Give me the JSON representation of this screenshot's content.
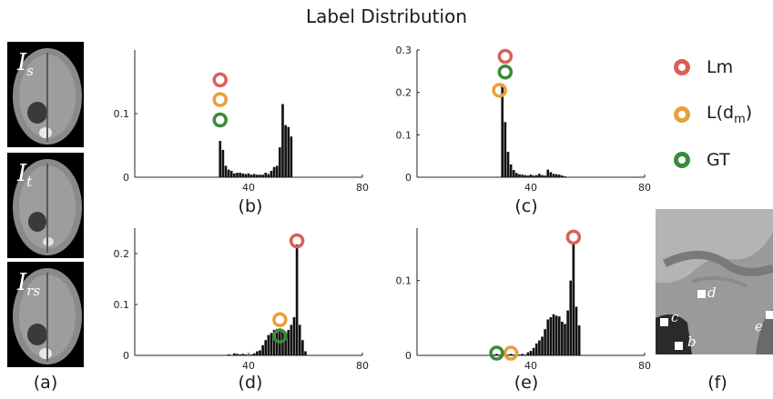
{
  "title": "Label Distribution",
  "captions": {
    "a": "(a)",
    "b": "(b)",
    "c": "(c)",
    "d": "(d)",
    "e": "(e)",
    "f": "(f)"
  },
  "brains": [
    {
      "label": "I",
      "sub": "s"
    },
    {
      "label": "I",
      "sub": "t"
    },
    {
      "label": "I",
      "sub": "rs"
    }
  ],
  "legend": [
    {
      "label": "Lm",
      "color": "#d9605a"
    },
    {
      "label": "L(d",
      "sub": "m",
      "suffix": ")",
      "color": "#e8a03a"
    },
    {
      "label": "GT",
      "color": "#3b8a3a"
    }
  ],
  "panel_f_labels": {
    "b": "b",
    "c": "c",
    "d": "d",
    "e": "e"
  },
  "chart_data": [
    {
      "panel": "(b)",
      "type": "bar",
      "xlim": [
        0,
        80
      ],
      "ylim": [
        0,
        0.2
      ],
      "xticks": [
        "40",
        "80"
      ],
      "yticks": [
        "0",
        "0.1"
      ],
      "ytick_values": [
        0,
        0.1
      ],
      "x": [
        30,
        31,
        32,
        33,
        34,
        35,
        36,
        37,
        38,
        39,
        40,
        41,
        42,
        43,
        44,
        45,
        46,
        47,
        48,
        49,
        50,
        51,
        52,
        53,
        54,
        55
      ],
      "values": [
        0.057,
        0.043,
        0.018,
        0.012,
        0.01,
        0.006,
        0.007,
        0.007,
        0.006,
        0.005,
        0.006,
        0.004,
        0.005,
        0.004,
        0.004,
        0.004,
        0.007,
        0.005,
        0.01,
        0.016,
        0.018,
        0.047,
        0.115,
        0.082,
        0.079,
        0.064
      ],
      "markers": [
        {
          "name": "Lm",
          "x": 30,
          "y": 0.153
        },
        {
          "name": "L(dm)",
          "x": 30,
          "y": 0.122
        },
        {
          "name": "GT",
          "x": 30,
          "y": 0.09
        }
      ]
    },
    {
      "panel": "(c)",
      "type": "bar",
      "xlim": [
        0,
        80
      ],
      "ylim": [
        0,
        0.3
      ],
      "xticks": [
        "40",
        "80"
      ],
      "yticks": [
        "0",
        "0.1",
        "0.2",
        "0.3"
      ],
      "ytick_values": [
        0,
        0.1,
        0.2,
        0.3
      ],
      "x": [
        30,
        31,
        32,
        33,
        34,
        35,
        36,
        37,
        38,
        39,
        40,
        41,
        42,
        43,
        44,
        45,
        46,
        47,
        48,
        49,
        50,
        51,
        52
      ],
      "values": [
        0.22,
        0.13,
        0.06,
        0.03,
        0.017,
        0.01,
        0.007,
        0.006,
        0.005,
        0.004,
        0.006,
        0.004,
        0.005,
        0.008,
        0.005,
        0.004,
        0.018,
        0.012,
        0.008,
        0.007,
        0.006,
        0.004,
        0.002
      ],
      "markers": [
        {
          "name": "Lm",
          "x": 31,
          "y": 0.285
        },
        {
          "name": "L(dm)",
          "x": 29,
          "y": 0.205
        },
        {
          "name": "GT",
          "x": 31,
          "y": 0.248
        }
      ]
    },
    {
      "panel": "(d)",
      "type": "bar",
      "xlim": [
        0,
        80
      ],
      "ylim": [
        0,
        0.25
      ],
      "xticks": [
        "40",
        "80"
      ],
      "yticks": [
        "0",
        "0.1",
        "0.2"
      ],
      "ytick_values": [
        0,
        0.1,
        0.2
      ],
      "x": [
        33,
        34,
        35,
        36,
        37,
        38,
        39,
        40,
        41,
        42,
        43,
        44,
        45,
        46,
        47,
        48,
        49,
        50,
        51,
        52,
        53,
        54,
        55,
        56,
        57,
        58,
        59,
        60
      ],
      "values": [
        0.002,
        0.001,
        0.004,
        0.003,
        0.002,
        0.003,
        0.002,
        0.001,
        0.002,
        0.004,
        0.008,
        0.01,
        0.02,
        0.03,
        0.04,
        0.044,
        0.05,
        0.052,
        0.053,
        0.05,
        0.045,
        0.05,
        0.06,
        0.075,
        0.218,
        0.06,
        0.03,
        0.008
      ],
      "markers": [
        {
          "name": "Lm",
          "x": 57,
          "y": 0.225
        },
        {
          "name": "L(dm)",
          "x": 51,
          "y": 0.07
        },
        {
          "name": "GT",
          "x": 51,
          "y": 0.038
        }
      ]
    },
    {
      "panel": "(e)",
      "type": "bar",
      "xlim": [
        0,
        80
      ],
      "ylim": [
        0,
        0.17
      ],
      "xticks": [
        "40",
        "80"
      ],
      "yticks": [
        "0",
        "0.1"
      ],
      "ytick_values": [
        0,
        0.1
      ],
      "x": [
        27,
        28,
        29,
        30,
        31,
        32,
        33,
        34,
        35,
        36,
        37,
        38,
        39,
        40,
        41,
        42,
        43,
        44,
        45,
        46,
        47,
        48,
        49,
        50,
        51,
        52,
        53,
        54,
        55,
        56,
        57
      ],
      "values": [
        0.001,
        0.002,
        0.001,
        0.001,
        0.002,
        0.001,
        0.002,
        0.001,
        0.002,
        0.001,
        0.002,
        0.001,
        0.004,
        0.006,
        0.01,
        0.016,
        0.02,
        0.025,
        0.035,
        0.048,
        0.051,
        0.055,
        0.053,
        0.052,
        0.045,
        0.042,
        0.06,
        0.1,
        0.15,
        0.065,
        0.04
      ],
      "markers": [
        {
          "name": "Lm",
          "x": 55,
          "y": 0.158
        },
        {
          "name": "L(dm)",
          "x": 33,
          "y": 0.003
        },
        {
          "name": "GT",
          "x": 28,
          "y": 0.003
        }
      ]
    }
  ]
}
